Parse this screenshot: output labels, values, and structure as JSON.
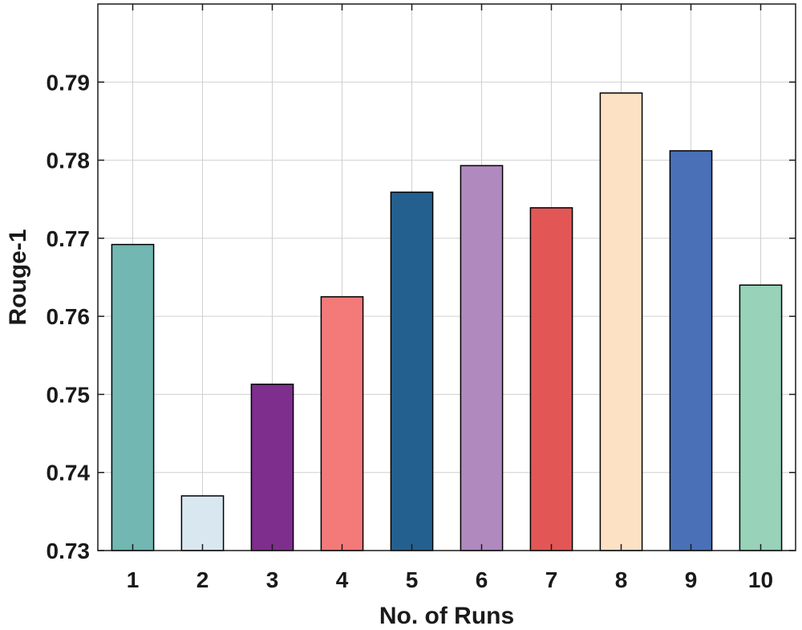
{
  "chart_data": {
    "type": "bar",
    "title": "",
    "xlabel": "No. of Runs",
    "ylabel": "Rouge-1",
    "categories": [
      "1",
      "2",
      "3",
      "4",
      "5",
      "6",
      "7",
      "8",
      "9",
      "10"
    ],
    "values": [
      0.7692,
      0.737,
      0.7513,
      0.7625,
      0.7759,
      0.7793,
      0.7739,
      0.7886,
      0.7812,
      0.764
    ],
    "ylim": [
      0.73,
      0.8
    ],
    "yticks": [
      0.73,
      0.74,
      0.75,
      0.76,
      0.77,
      0.78,
      0.79
    ],
    "ytick_labels": [
      "0.73",
      "0.74",
      "0.75",
      "0.76",
      "0.77",
      "0.78",
      "0.79"
    ],
    "grid": true,
    "colors": [
      "#72b7b2",
      "#d9e7f0",
      "#7e2e8c",
      "#f47a7a",
      "#24608f",
      "#b089bf",
      "#e35656",
      "#fde1c4",
      "#4a70b8",
      "#97d2b9"
    ]
  }
}
